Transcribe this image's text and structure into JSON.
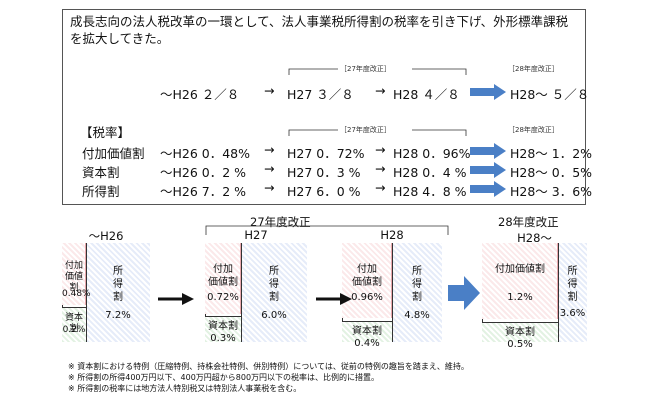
{
  "intro_text": "成長志向の法人税改革の一環として、法人事業税所得割の税率を引き下げ、外形標準課税を拡大してきた。",
  "timeline": {
    "prior": "～H26  ２／８",
    "h27": "H27  ３／８",
    "h28": "H28  ４／８",
    "after": "H28～ ５／８",
    "note_27": "［27年度改正］",
    "note_28": "［28年度改正］"
  },
  "rates_header": "【税率】",
  "rates": [
    {
      "name": "付加価値割",
      "prior": "～H26  0．48%",
      "h27": "H27  0．72%",
      "h28": "H28  0．96%",
      "after": "H28～ 1．2%"
    },
    {
      "name": "資本割",
      "prior": "～H26  0．2  %",
      "h27": "H27  0．3  %",
      "h28": "H28  0．4  %",
      "after": "H28～ 0．5%"
    },
    {
      "name": "所得割",
      "prior": "～H26  7．2  %",
      "h27": "H27  6．0  %",
      "h28": "H28  4．8  %",
      "after": "H28～ 3．6%"
    }
  ],
  "rates_note_27": "［27年度改正］",
  "rates_note_28": "［28年度改正］",
  "arrow_glyph": "→",
  "diagram": {
    "group_27_label": "27年度改正",
    "group_28_label": "28年度改正",
    "columns": [
      {
        "period": "～H26",
        "fuka_label": "付加\n価値割",
        "fuka_value": "0.48%",
        "shihon_label": "資本割",
        "shihon_value": "0.2%",
        "shotoku_label": "所\n得\n割",
        "shotoku_value": "7.2%",
        "fuka_frac": 0.48,
        "shihon_frac": 0.2
      },
      {
        "period": "H27",
        "fuka_label": "付加\n価値割",
        "fuka_value": "0.72%",
        "shihon_label": "資本割",
        "shihon_value": "0.3%",
        "shotoku_label": "所\n得\n割",
        "shotoku_value": "6.0%"
      },
      {
        "period": "H28",
        "fuka_label": "付加\n価値割",
        "fuka_value": "0.96%",
        "shihon_label": "資本割",
        "shihon_value": "0.4%",
        "shotoku_label": "所\n得\n割",
        "shotoku_value": "4.8%"
      },
      {
        "period": "H28～",
        "fuka_label": "付加価値割",
        "fuka_value": "1.2%",
        "shihon_label": "資本割",
        "shihon_value": "0.5%",
        "shotoku_label": "所\n得\n割",
        "shotoku_value": "3.6%"
      }
    ]
  },
  "footnotes": [
    "※ 資本割における特例（圧縮特例、持株会社特例、併別特例）については、従前の特例の趣旨を踏まえ、維持。",
    "※ 所得割の所得400万円以下、400万円超から800万円以下の税率は、比例的に措置。",
    "※ 所得割の税率には地方法人特別税又は特別法人事業税を含む。"
  ],
  "colors": {
    "fuka": "#e8a8ad",
    "shotoku": "#8aa6e0",
    "shihon": "#8cc68c",
    "arrow_big": "#4a7fc6"
  }
}
